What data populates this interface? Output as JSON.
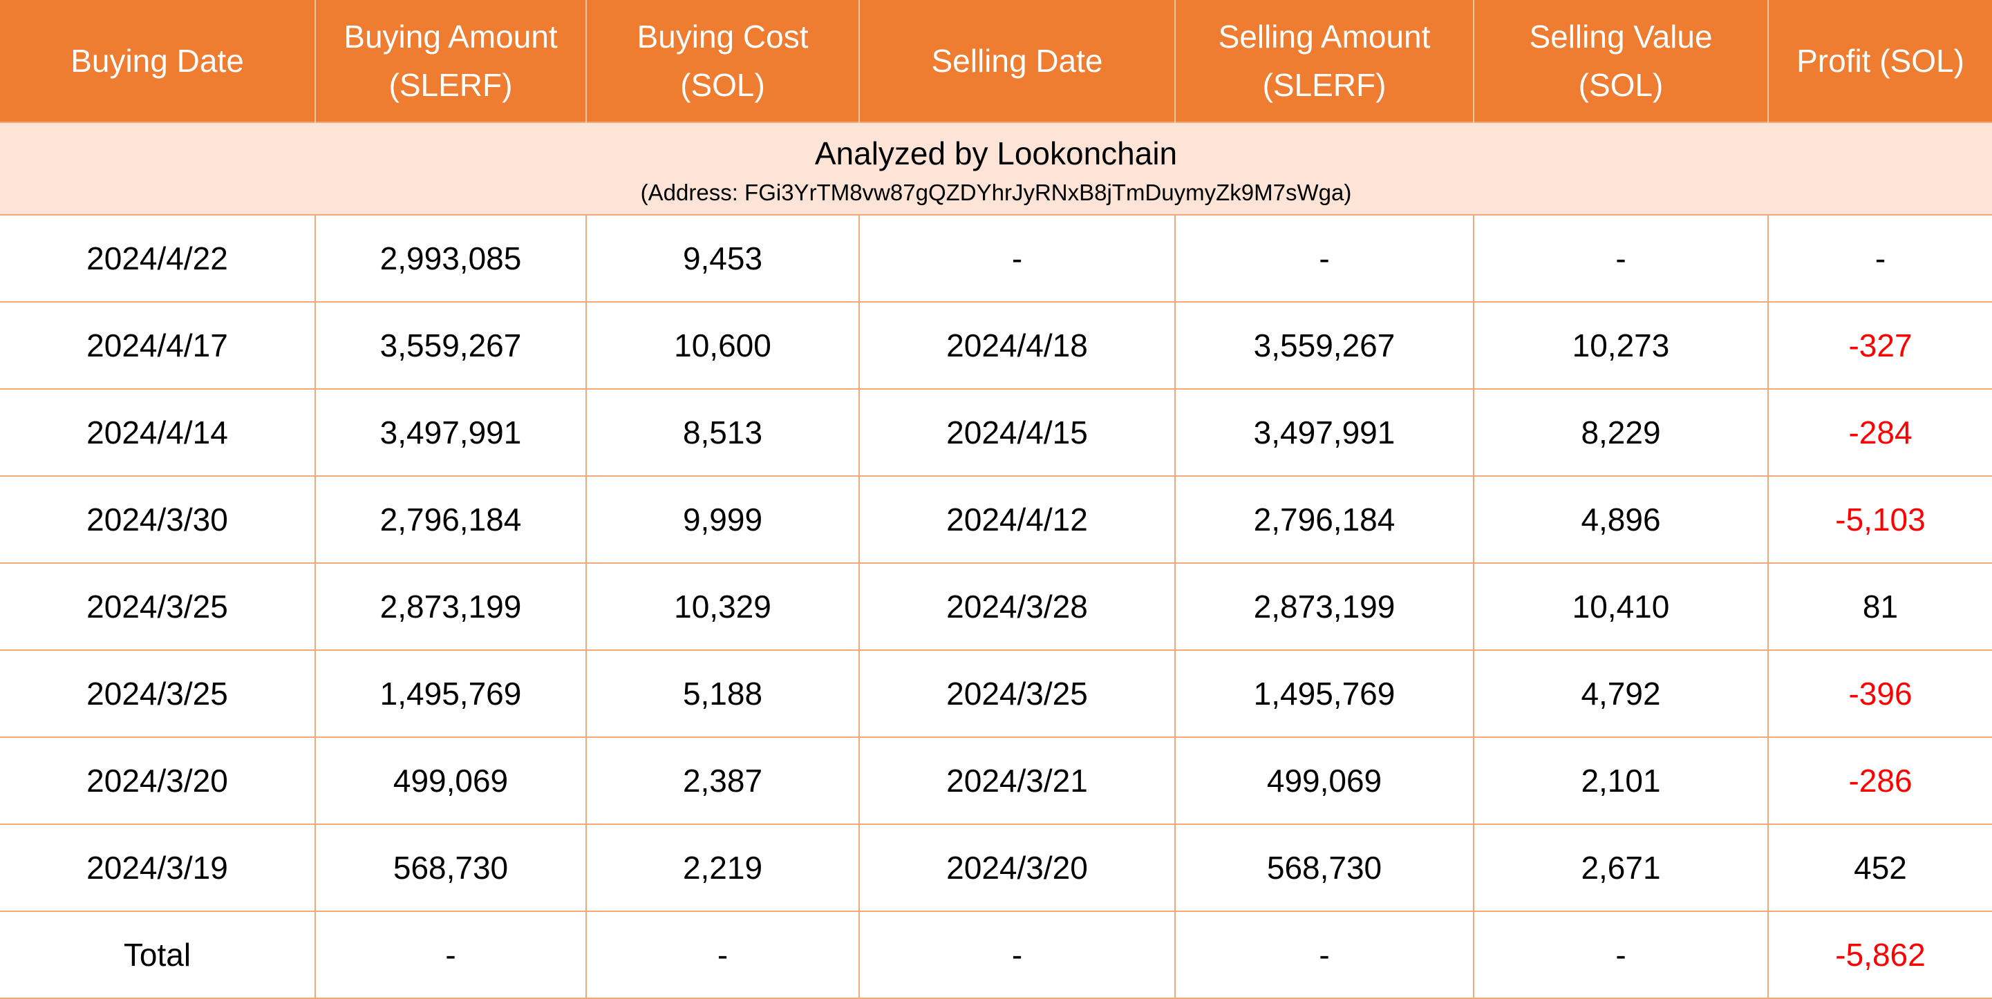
{
  "header": {
    "columns": [
      {
        "line1": "Buying Date",
        "line2": ""
      },
      {
        "line1": "Buying Amount",
        "line2": "(SLERF)"
      },
      {
        "line1": "Buying Cost",
        "line2": "(SOL)"
      },
      {
        "line1": "Selling Date",
        "line2": ""
      },
      {
        "line1": "Selling Amount",
        "line2": "(SLERF)"
      },
      {
        "line1": "Selling Value",
        "line2": "(SOL)"
      },
      {
        "line1": "Profit (SOL)",
        "line2": ""
      }
    ]
  },
  "banner": {
    "title": "Analyzed by Lookonchain",
    "address": "(Address: FGi3YrTM8vw87gQZDYhrJyRNxB8jTmDuymyZk9M7sWga)"
  },
  "rows": [
    {
      "buying_date": "2024/4/22",
      "buying_amount": "2,993,085",
      "buying_cost": "9,453",
      "selling_date": "-",
      "selling_amount": "-",
      "selling_value": "-",
      "profit": "-"
    },
    {
      "buying_date": "2024/4/17",
      "buying_amount": "3,559,267",
      "buying_cost": "10,600",
      "selling_date": "2024/4/18",
      "selling_amount": "3,559,267",
      "selling_value": "10,273",
      "profit": "-327"
    },
    {
      "buying_date": "2024/4/14",
      "buying_amount": "3,497,991",
      "buying_cost": "8,513",
      "selling_date": "2024/4/15",
      "selling_amount": "3,497,991",
      "selling_value": "8,229",
      "profit": "-284"
    },
    {
      "buying_date": "2024/3/30",
      "buying_amount": "2,796,184",
      "buying_cost": "9,999",
      "selling_date": "2024/4/12",
      "selling_amount": "2,796,184",
      "selling_value": "4,896",
      "profit": "-5,103"
    },
    {
      "buying_date": "2024/3/25",
      "buying_amount": "2,873,199",
      "buying_cost": "10,329",
      "selling_date": "2024/3/28",
      "selling_amount": "2,873,199",
      "selling_value": "10,410",
      "profit": "81"
    },
    {
      "buying_date": "2024/3/25",
      "buying_amount": "1,495,769",
      "buying_cost": "5,188",
      "selling_date": "2024/3/25",
      "selling_amount": "1,495,769",
      "selling_value": "4,792",
      "profit": "-396"
    },
    {
      "buying_date": "2024/3/20",
      "buying_amount": "499,069",
      "buying_cost": "2,387",
      "selling_date": "2024/3/21",
      "selling_amount": "499,069",
      "selling_value": "2,101",
      "profit": "-286"
    },
    {
      "buying_date": "2024/3/19",
      "buying_amount": "568,730",
      "buying_cost": "2,219",
      "selling_date": "2024/3/20",
      "selling_amount": "568,730",
      "selling_value": "2,671",
      "profit": "452"
    },
    {
      "buying_date": "Total",
      "buying_amount": "-",
      "buying_cost": "-",
      "selling_date": "-",
      "selling_amount": "-",
      "selling_value": "-",
      "profit": "-5,862"
    }
  ],
  "colors": {
    "header_bg": "#ee7d32",
    "header_text": "#ffffff",
    "banner_bg": "#fde4d7",
    "grid_line": "#f2a877",
    "negative_profit": "#ff0000"
  }
}
